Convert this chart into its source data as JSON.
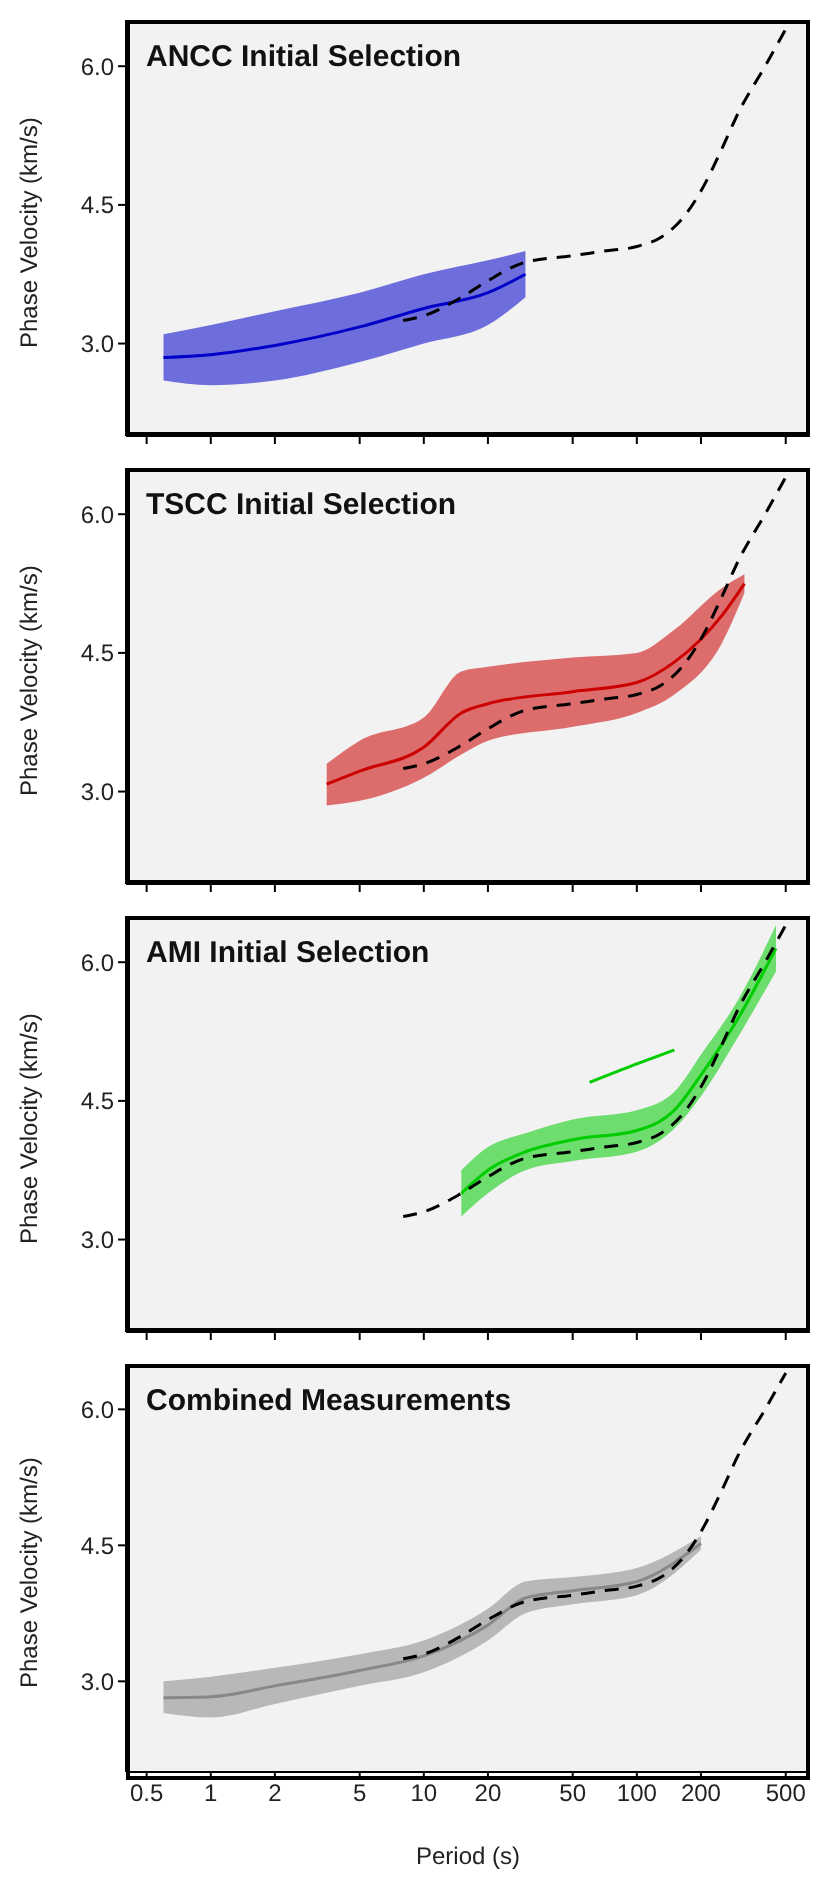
{
  "chart_data": [
    {
      "type": "line",
      "title": "ANCC Initial Selection",
      "ylabel": "Phase Velocity (km/s)",
      "xlim": [
        0.4,
        650
      ],
      "ylim": [
        2.0,
        6.5
      ],
      "log": "x",
      "tick_labels": "y",
      "xticks": [
        {
          "value": 0.5,
          "label": null
        },
        {
          "value": 1,
          "label": null
        },
        {
          "value": 2,
          "label": null
        },
        {
          "value": 5,
          "label": null
        },
        {
          "value": 10,
          "label": null
        },
        {
          "value": 20,
          "label": null
        },
        {
          "value": 50,
          "label": null
        },
        {
          "value": 100,
          "label": null
        },
        {
          "value": 200,
          "label": null
        },
        {
          "value": 500,
          "label": null
        }
      ],
      "yticks": [
        {
          "value": 3,
          "label": "3.0"
        },
        {
          "value": 4.5,
          "label": "4.5"
        },
        {
          "value": 6,
          "label": "6.0"
        }
      ],
      "series": [
        {
          "color": "#0000c8",
          "x": [
            0.6,
            1,
            2,
            5,
            10,
            20,
            30
          ],
          "values": [
            2.85,
            2.88,
            2.98,
            3.18,
            3.38,
            3.55,
            3.75
          ],
          "lower": [
            2.6,
            2.55,
            2.6,
            2.8,
            3.0,
            3.2,
            3.5
          ],
          "upper": [
            3.1,
            3.2,
            3.35,
            3.55,
            3.75,
            3.9,
            4.0
          ]
        },
        {
          "color": "#000000",
          "line_style": "dashed",
          "x": [
            8,
            10,
            15,
            20,
            30,
            50,
            70,
            100,
            130,
            170,
            200,
            250,
            300,
            400,
            500
          ],
          "values": [
            3.25,
            3.3,
            3.5,
            3.68,
            3.88,
            3.95,
            4.0,
            4.05,
            4.15,
            4.4,
            4.65,
            5.1,
            5.5,
            6.0,
            6.4
          ]
        }
      ]
    },
    {
      "type": "line",
      "title": "TSCC Initial Selection",
      "ylabel": "Phase Velocity (km/s)",
      "xlim": [
        0.4,
        650
      ],
      "ylim": [
        2.0,
        6.5
      ],
      "log": "x",
      "tick_labels": "y",
      "xticks": [
        {
          "value": 0.5,
          "label": null
        },
        {
          "value": 1,
          "label": null
        },
        {
          "value": 2,
          "label": null
        },
        {
          "value": 5,
          "label": null
        },
        {
          "value": 10,
          "label": null
        },
        {
          "value": 20,
          "label": null
        },
        {
          "value": 50,
          "label": null
        },
        {
          "value": 100,
          "label": null
        },
        {
          "value": 200,
          "label": null
        },
        {
          "value": 500,
          "label": null
        }
      ],
      "yticks": [
        {
          "value": 3,
          "label": "3.0"
        },
        {
          "value": 4.5,
          "label": "4.5"
        },
        {
          "value": 6,
          "label": "6.0"
        }
      ],
      "series": [
        {
          "color": "#cc0000",
          "x": [
            3.5,
            5,
            10,
            15,
            20,
            50,
            100,
            150,
            250,
            320
          ],
          "values": [
            3.08,
            3.22,
            3.48,
            3.85,
            3.95,
            4.08,
            4.18,
            4.4,
            4.9,
            5.25
          ],
          "lower": [
            2.85,
            2.9,
            3.15,
            3.4,
            3.55,
            3.7,
            3.85,
            4.05,
            4.6,
            5.15
          ],
          "upper": [
            3.3,
            3.55,
            3.8,
            4.3,
            4.35,
            4.45,
            4.5,
            4.75,
            5.2,
            5.35
          ]
        },
        {
          "color": "#000000",
          "line_style": "dashed",
          "x": [
            8,
            10,
            15,
            20,
            30,
            50,
            70,
            100,
            130,
            170,
            200,
            250,
            300,
            400,
            500
          ],
          "values": [
            3.25,
            3.3,
            3.5,
            3.68,
            3.88,
            3.95,
            4.0,
            4.05,
            4.15,
            4.4,
            4.65,
            5.1,
            5.5,
            6.0,
            6.4
          ]
        }
      ]
    },
    {
      "type": "line",
      "title": "AMI Initial Selection",
      "ylabel": "Phase Velocity (km/s)",
      "xlim": [
        0.4,
        650
      ],
      "ylim": [
        2.0,
        6.5
      ],
      "log": "x",
      "tick_labels": "y",
      "xticks": [
        {
          "value": 0.5,
          "label": null
        },
        {
          "value": 1,
          "label": null
        },
        {
          "value": 2,
          "label": null
        },
        {
          "value": 5,
          "label": null
        },
        {
          "value": 10,
          "label": null
        },
        {
          "value": 20,
          "label": null
        },
        {
          "value": 50,
          "label": null
        },
        {
          "value": 100,
          "label": null
        },
        {
          "value": 200,
          "label": null
        },
        {
          "value": 500,
          "label": null
        }
      ],
      "yticks": [
        {
          "value": 3,
          "label": "3.0"
        },
        {
          "value": 4.5,
          "label": "4.5"
        },
        {
          "value": 6,
          "label": "6.0"
        }
      ],
      "series": [
        {
          "color": "#00cc00",
          "x": [
            15,
            20,
            30,
            50,
            100,
            150,
            200,
            300,
            450
          ],
          "values": [
            3.5,
            3.75,
            3.95,
            4.08,
            4.18,
            4.4,
            4.78,
            5.4,
            6.15
          ],
          "lower": [
            3.25,
            3.5,
            3.75,
            3.85,
            3.95,
            4.2,
            4.55,
            5.2,
            5.9
          ],
          "upper": [
            3.75,
            4.0,
            4.15,
            4.3,
            4.4,
            4.6,
            5.0,
            5.6,
            6.4
          ]
        },
        {
          "color": "#00cc00",
          "x": [
            60,
            100,
            150
          ],
          "values": [
            4.7,
            4.9,
            5.05
          ]
        },
        {
          "color": "#000000",
          "line_style": "dashed",
          "x": [
            8,
            10,
            15,
            20,
            30,
            50,
            70,
            100,
            130,
            170,
            200,
            250,
            300,
            400,
            500
          ],
          "values": [
            3.25,
            3.3,
            3.5,
            3.68,
            3.88,
            3.95,
            4.0,
            4.05,
            4.15,
            4.4,
            4.65,
            5.1,
            5.5,
            6.0,
            6.4
          ]
        }
      ]
    },
    {
      "type": "line",
      "title": "Combined Measurements",
      "xlabel": "Period (s)",
      "ylabel": "Phase Velocity (km/s)",
      "xlim": [
        0.4,
        650
      ],
      "ylim": [
        2.0,
        6.5
      ],
      "log": "x",
      "xticks": [
        {
          "value": 0.5,
          "label": "0.5"
        },
        1,
        2,
        5,
        10,
        20,
        50,
        100,
        200,
        500
      ],
      "yticks": [
        {
          "value": 3,
          "label": "3.0"
        },
        {
          "value": 4.5,
          "label": "4.5"
        },
        {
          "value": 6,
          "label": "6.0"
        }
      ],
      "series": [
        {
          "color": "#888888",
          "x": [
            0.6,
            1,
            2,
            5,
            10,
            20,
            30,
            50,
            100,
            200
          ],
          "values": [
            2.82,
            2.83,
            2.95,
            3.12,
            3.28,
            3.62,
            3.92,
            4.0,
            4.1,
            4.52
          ],
          "lower": [
            2.65,
            2.6,
            2.75,
            2.95,
            3.1,
            3.45,
            3.75,
            3.85,
            3.95,
            4.45
          ],
          "upper": [
            3.0,
            3.05,
            3.15,
            3.3,
            3.45,
            3.8,
            4.1,
            4.15,
            4.25,
            4.6
          ]
        },
        {
          "color": "#000000",
          "line_style": "dashed",
          "x": [
            8,
            10,
            15,
            20,
            30,
            50,
            70,
            100,
            130,
            170,
            200,
            250,
            300,
            400,
            500
          ],
          "values": [
            3.25,
            3.3,
            3.5,
            3.68,
            3.88,
            3.95,
            4.0,
            4.05,
            4.15,
            4.4,
            4.65,
            5.1,
            5.5,
            6.0,
            6.4
          ]
        }
      ]
    }
  ]
}
